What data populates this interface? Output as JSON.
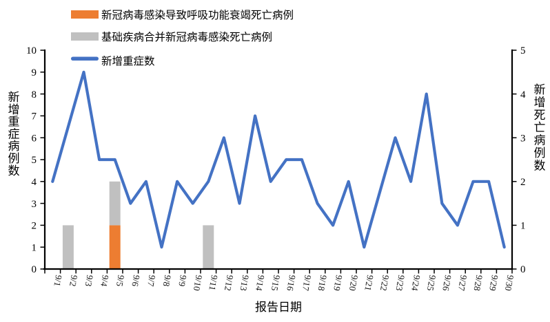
{
  "chart_data": {
    "type": "combo",
    "title": "",
    "categories": [
      "9/1",
      "9/2",
      "9/3",
      "9/4",
      "9/5",
      "9/6",
      "9/7",
      "9/8",
      "9/9",
      "9/10",
      "9/11",
      "9/12",
      "9/13",
      "9/14",
      "9/15",
      "9/16",
      "9/17",
      "9/18",
      "9/19",
      "9/20",
      "9/21",
      "9/22",
      "9/23",
      "9/24",
      "9/25",
      "9/26",
      "9/27",
      "9/28",
      "9/29",
      "9/30"
    ],
    "xlabel": "报告日期",
    "left_axis": {
      "label": "新增重症病例数",
      "min": 0,
      "max": 10,
      "step": 1
    },
    "right_axis": {
      "label": "新增死亡病例数",
      "min": 0,
      "max": 5,
      "step": 1
    },
    "bars_stacked": true,
    "grid": false,
    "legend_position": "top-left",
    "series": [
      {
        "name": "新冠病毒感染导致呼吸功能衰竭死亡病例",
        "type": "bar",
        "axis": "right",
        "color": "#ED7D31",
        "values": [
          0,
          0,
          0,
          0,
          1,
          0,
          0,
          0,
          0,
          0,
          0,
          0,
          0,
          0,
          0,
          0,
          0,
          0,
          0,
          0,
          0,
          0,
          0,
          0,
          0,
          0,
          0,
          0,
          0,
          0
        ]
      },
      {
        "name": "基础疾病合并新冠病毒感染死亡病例",
        "type": "bar",
        "axis": "right",
        "color": "#C0C0C0",
        "values": [
          0,
          1,
          0,
          0,
          1,
          0,
          0,
          0,
          0,
          0,
          1,
          0,
          0,
          0,
          0,
          0,
          0,
          0,
          0,
          0,
          0,
          0,
          0,
          0,
          0,
          0,
          0,
          0,
          0,
          0
        ]
      },
      {
        "name": "新增重症数",
        "type": "line",
        "axis": "left",
        "color": "#4472C4",
        "values": [
          4,
          6.5,
          9,
          5,
          5,
          3,
          4,
          1,
          4,
          3,
          4,
          6,
          3,
          7,
          4,
          5,
          5,
          3,
          2,
          4,
          1,
          3.5,
          6,
          4,
          8,
          3,
          2,
          4,
          4,
          1
        ]
      }
    ]
  },
  "colors": {
    "line_blue": "#4472C4",
    "bar_orange": "#ED7D31",
    "bar_gray": "#C0C0C0",
    "axis_black": "#000000",
    "background": "#FFFFFF"
  }
}
